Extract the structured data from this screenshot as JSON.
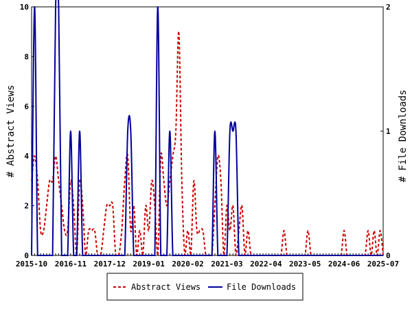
{
  "chart_data": {
    "type": "line",
    "title": "",
    "xlabel": "",
    "ylabel_left": "# Abstract Views",
    "ylabel_right": "# File Downloads",
    "x_tick_labels": [
      "2015-10",
      "2016-11",
      "2017-12",
      "2019-01",
      "2020-02",
      "2021-03",
      "2022-04",
      "2023-05",
      "2024-06",
      "2025-07"
    ],
    "x_range_months": [
      0,
      117
    ],
    "y_left": {
      "range": [
        0,
        10
      ],
      "ticks": [
        "0",
        "2",
        "4",
        "6",
        "8",
        "10"
      ]
    },
    "y_right": {
      "range": [
        0,
        2
      ],
      "ticks": [
        "0",
        "1",
        "2"
      ]
    },
    "legend": {
      "placement": "bottom",
      "entries": [
        "Abstract Views",
        "File Downloads"
      ]
    },
    "series": [
      {
        "name": "Abstract Views",
        "axis": "left",
        "color": "#cc0000",
        "dash": "dashed",
        "points": [
          [
            0,
            3
          ],
          [
            1,
            4
          ],
          [
            2,
            3
          ],
          [
            3,
            1
          ],
          [
            4,
            1
          ],
          [
            5,
            2
          ],
          [
            6,
            3
          ],
          [
            7,
            3
          ],
          [
            8,
            4
          ],
          [
            9,
            3
          ],
          [
            10,
            2
          ],
          [
            11,
            1
          ],
          [
            12,
            1
          ],
          [
            13,
            3
          ],
          [
            14,
            2
          ],
          [
            15,
            0
          ],
          [
            16,
            3
          ],
          [
            17,
            2
          ],
          [
            18,
            0
          ],
          [
            19,
            1
          ],
          [
            20,
            1
          ],
          [
            21,
            1
          ],
          [
            22,
            0
          ],
          [
            23,
            0
          ],
          [
            24,
            1
          ],
          [
            25,
            2
          ],
          [
            26,
            2
          ],
          [
            27,
            2
          ],
          [
            28,
            0
          ],
          [
            29,
            0
          ],
          [
            30,
            1
          ],
          [
            31,
            3
          ],
          [
            32,
            4
          ],
          [
            33,
            1
          ],
          [
            34,
            2
          ],
          [
            35,
            0
          ],
          [
            36,
            1
          ],
          [
            37,
            0
          ],
          [
            38,
            2
          ],
          [
            39,
            1
          ],
          [
            40,
            3
          ],
          [
            41,
            2
          ],
          [
            42,
            0
          ],
          [
            43,
            4
          ],
          [
            44,
            3
          ],
          [
            45,
            2
          ],
          [
            46,
            3
          ],
          [
            47,
            4
          ],
          [
            48,
            5
          ],
          [
            49,
            9
          ],
          [
            50,
            3
          ],
          [
            51,
            0
          ],
          [
            52,
            1
          ],
          [
            53,
            0
          ],
          [
            54,
            3
          ],
          [
            55,
            1
          ],
          [
            56,
            1
          ],
          [
            57,
            1
          ],
          [
            58,
            0
          ],
          [
            59,
            0
          ],
          [
            60,
            0
          ],
          [
            61,
            2
          ],
          [
            62,
            4
          ],
          [
            63,
            3
          ],
          [
            64,
            0
          ],
          [
            65,
            2
          ],
          [
            66,
            1
          ],
          [
            67,
            2
          ],
          [
            68,
            0
          ],
          [
            69,
            1
          ],
          [
            70,
            2
          ],
          [
            71,
            0
          ],
          [
            72,
            1
          ],
          [
            73,
            0
          ],
          [
            74,
            0
          ],
          [
            75,
            0
          ],
          [
            76,
            0
          ],
          [
            77,
            0
          ],
          [
            78,
            0
          ],
          [
            79,
            0
          ],
          [
            80,
            0
          ],
          [
            81,
            0
          ],
          [
            82,
            0
          ],
          [
            83,
            0
          ],
          [
            84,
            1
          ],
          [
            85,
            0
          ],
          [
            86,
            0
          ],
          [
            87,
            0
          ],
          [
            88,
            0
          ],
          [
            89,
            0
          ],
          [
            90,
            0
          ],
          [
            91,
            0
          ],
          [
            92,
            1
          ],
          [
            93,
            0
          ],
          [
            94,
            0
          ],
          [
            95,
            0
          ],
          [
            96,
            0
          ],
          [
            97,
            0
          ],
          [
            98,
            0
          ],
          [
            99,
            0
          ],
          [
            100,
            0
          ],
          [
            101,
            0
          ],
          [
            102,
            0
          ],
          [
            103,
            0
          ],
          [
            104,
            1
          ],
          [
            105,
            0
          ],
          [
            106,
            0
          ],
          [
            107,
            0
          ],
          [
            108,
            0
          ],
          [
            109,
            0
          ],
          [
            110,
            0
          ],
          [
            111,
            0
          ],
          [
            112,
            1
          ],
          [
            113,
            0
          ],
          [
            114,
            1
          ],
          [
            115,
            0
          ],
          [
            116,
            1
          ],
          [
            117,
            0
          ]
        ]
      },
      {
        "name": "File Downloads",
        "axis": "right",
        "color": "#000099",
        "dash": "solid",
        "points": [
          [
            0,
            0
          ],
          [
            1,
            2
          ],
          [
            2,
            0
          ],
          [
            3,
            0
          ],
          [
            4,
            0
          ],
          [
            5,
            0
          ],
          [
            6,
            0
          ],
          [
            7,
            0
          ],
          [
            8,
            2
          ],
          [
            9,
            2
          ],
          [
            10,
            0
          ],
          [
            11,
            0
          ],
          [
            12,
            0
          ],
          [
            13,
            1
          ],
          [
            14,
            0
          ],
          [
            15,
            0
          ],
          [
            16,
            1
          ],
          [
            17,
            0
          ],
          [
            18,
            0
          ],
          [
            19,
            0
          ],
          [
            20,
            0
          ],
          [
            21,
            0
          ],
          [
            22,
            0
          ],
          [
            23,
            0
          ],
          [
            24,
            0
          ],
          [
            25,
            0
          ],
          [
            26,
            0
          ],
          [
            27,
            0
          ],
          [
            28,
            0
          ],
          [
            29,
            0
          ],
          [
            30,
            0
          ],
          [
            31,
            0
          ],
          [
            32,
            1
          ],
          [
            33,
            1
          ],
          [
            34,
            0
          ],
          [
            35,
            0
          ],
          [
            36,
            0
          ],
          [
            37,
            0
          ],
          [
            38,
            0
          ],
          [
            39,
            0
          ],
          [
            40,
            0
          ],
          [
            41,
            0
          ],
          [
            42,
            2
          ],
          [
            43,
            0
          ],
          [
            44,
            0
          ],
          [
            45,
            0
          ],
          [
            46,
            1
          ],
          [
            47,
            0
          ],
          [
            48,
            0
          ],
          [
            49,
            0
          ],
          [
            50,
            0
          ],
          [
            51,
            0
          ],
          [
            52,
            0
          ],
          [
            53,
            0
          ],
          [
            54,
            0
          ],
          [
            55,
            0
          ],
          [
            56,
            0
          ],
          [
            57,
            0
          ],
          [
            58,
            0
          ],
          [
            59,
            0
          ],
          [
            60,
            0
          ],
          [
            61,
            1
          ],
          [
            62,
            0
          ],
          [
            63,
            0
          ],
          [
            64,
            0
          ],
          [
            65,
            0
          ],
          [
            66,
            1
          ],
          [
            67,
            1
          ],
          [
            68,
            1
          ],
          [
            69,
            0
          ],
          [
            70,
            0
          ],
          [
            71,
            0
          ],
          [
            72,
            0
          ],
          [
            73,
            0
          ],
          [
            74,
            0
          ],
          [
            75,
            0
          ],
          [
            76,
            0
          ],
          [
            77,
            0
          ],
          [
            78,
            0
          ],
          [
            79,
            0
          ],
          [
            80,
            0
          ],
          [
            81,
            0
          ],
          [
            82,
            0
          ],
          [
            83,
            0
          ],
          [
            84,
            0
          ],
          [
            85,
            0
          ],
          [
            86,
            0
          ],
          [
            87,
            0
          ],
          [
            88,
            0
          ],
          [
            89,
            0
          ],
          [
            90,
            0
          ],
          [
            91,
            0
          ],
          [
            92,
            0
          ],
          [
            93,
            0
          ],
          [
            94,
            0
          ],
          [
            95,
            0
          ],
          [
            96,
            0
          ],
          [
            97,
            0
          ],
          [
            98,
            0
          ],
          [
            99,
            0
          ],
          [
            100,
            0
          ],
          [
            101,
            0
          ],
          [
            102,
            0
          ],
          [
            103,
            0
          ],
          [
            104,
            0
          ],
          [
            105,
            0
          ],
          [
            106,
            0
          ],
          [
            107,
            0
          ],
          [
            108,
            0
          ],
          [
            109,
            0
          ],
          [
            110,
            0
          ],
          [
            111,
            0
          ],
          [
            112,
            0
          ],
          [
            113,
            0
          ],
          [
            114,
            0
          ],
          [
            115,
            0
          ],
          [
            116,
            0
          ],
          [
            117,
            0
          ]
        ]
      }
    ]
  }
}
